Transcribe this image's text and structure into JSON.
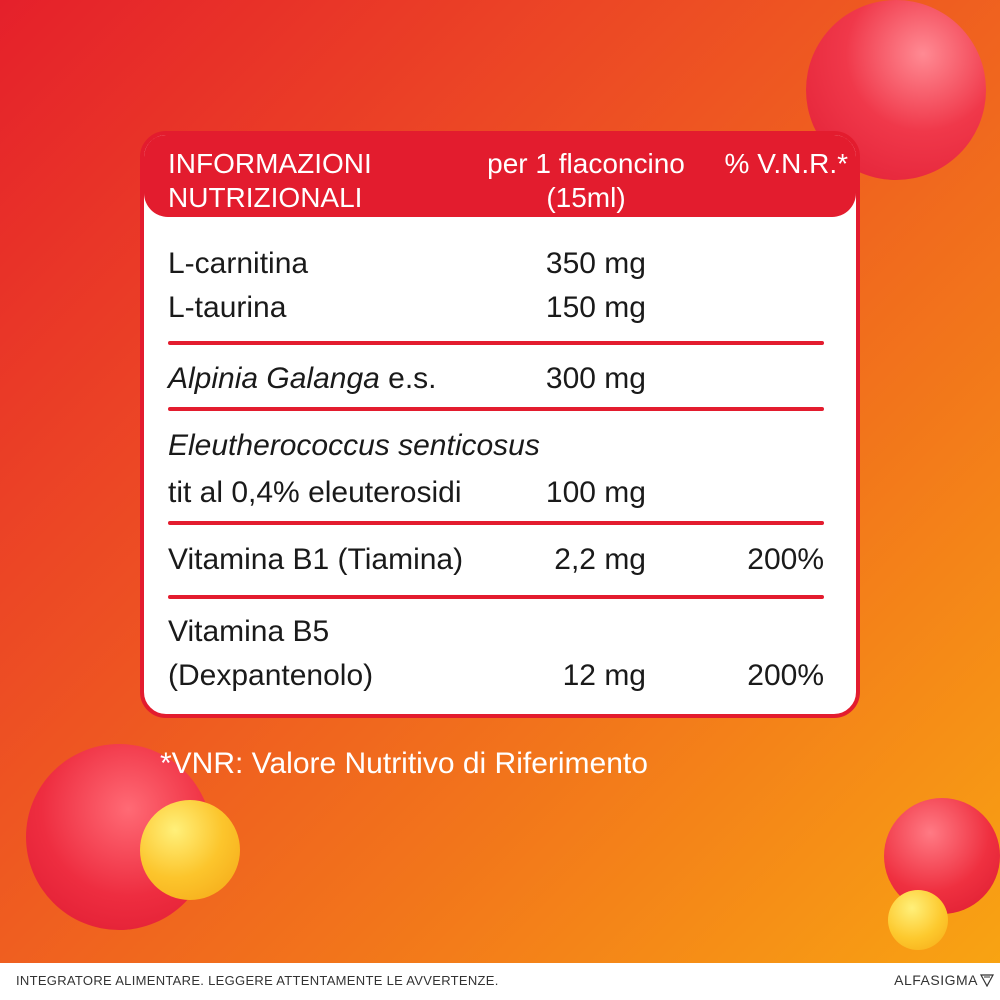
{
  "table": {
    "header": {
      "name_line1": "INFORMAZIONI",
      "name_line2": "NUTRIZIONALI",
      "amount_line1": "per 1 flaconcino",
      "amount_line2": "(15ml)",
      "vnr": "% V.N.R.*"
    },
    "rows": [
      {
        "name": "L-carnitina",
        "amount": "350 mg",
        "vnr": ""
      },
      {
        "name": "L-taurina",
        "amount": "150 mg",
        "vnr": ""
      },
      {
        "name_italic": "Alpinia Galanga",
        "name_suffix": " e.s.",
        "amount": "300 mg",
        "vnr": ""
      },
      {
        "name_line1_italic": "Eleutherococcus senticosus",
        "name_line2": "tit al 0,4% eleuterosidi",
        "amount": "100 mg",
        "vnr": ""
      },
      {
        "name": "Vitamina B1 (Tiamina)",
        "amount": "2,2 mg",
        "vnr": "200%"
      },
      {
        "name_line1": "Vitamina B5",
        "name_line2": "(Dexpantenolo)",
        "amount": "12 mg",
        "vnr": "200%"
      }
    ]
  },
  "footnote": "*VNR: Valore Nutritivo di Riferimento",
  "footer": {
    "disclaimer": "INTEGRATORE ALIMENTARE. LEGGERE ATTENTAMENTE LE AVVERTENZE.",
    "brand": "ALFASIGMA"
  },
  "colors": {
    "accent_red": "#e31c2e",
    "gradient_start": "#e5202b",
    "gradient_end": "#f9a612"
  }
}
